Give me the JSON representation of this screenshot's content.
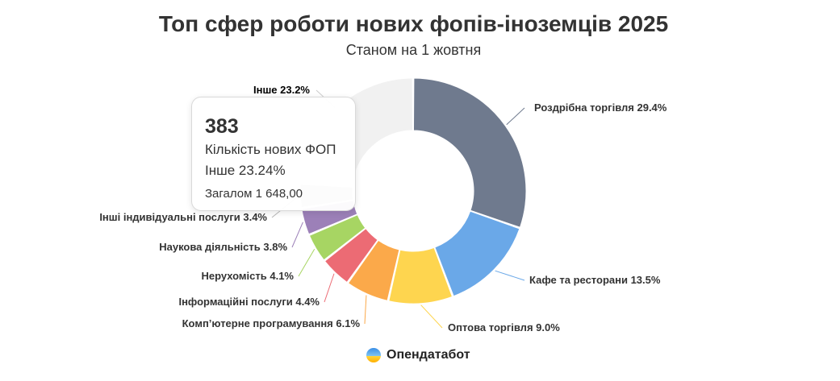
{
  "header": {
    "title": "Топ сфер роботи нових фопів-іноземців 2025",
    "subtitle": "Станом на 1 жовтня"
  },
  "chart_data": {
    "type": "pie",
    "variant": "donut",
    "title": "Топ сфер роботи нових фопів-іноземців 2025",
    "subtitle": "Станом на 1 жовтня",
    "unit": "%",
    "slices": [
      {
        "name": "Роздрібна торгівля",
        "value": 29.4,
        "label": "Роздрібна торгівля 29.4%",
        "color": "#6f7a8e"
      },
      {
        "name": "Кафе та ресторани",
        "value": 13.5,
        "label": "Кафе та ресторани 13.5%",
        "color": "#6aa8e8"
      },
      {
        "name": "Оптова торгівля",
        "value": 9.0,
        "label": "Оптова торгівля 9.0%",
        "color": "#fed54f"
      },
      {
        "name": "Комп’ютерне програмування",
        "value": 6.1,
        "label": "Комп’ютерне програмування 6.1%",
        "color": "#fba94a"
      },
      {
        "name": "Інформаційні послуги",
        "value": 4.4,
        "label": "Інформаційні послуги 4.4%",
        "color": "#ec6b74"
      },
      {
        "name": "Нерухомість",
        "value": 4.1,
        "label": "Нерухомість 4.1%",
        "color": "#a7d563"
      },
      {
        "name": "Наукова діяльність",
        "value": 3.8,
        "label": "Наукова діяльність 3.8%",
        "color": "#9c80b8"
      },
      {
        "name": "Інші індивідуальні послуги",
        "value": 3.4,
        "label": "Інші індивідуальні послуги 3.4%",
        "color": "#b8b8b8"
      },
      {
        "name": "Інше",
        "value": 23.2,
        "label": "Інше 23.2%",
        "color": "#f1f1f1"
      }
    ]
  },
  "tooltip": {
    "value": "383",
    "metric": "Кількість нових ФОП",
    "category": "Інше 23.24%",
    "total": "Загалом 1 648,00"
  },
  "brand": {
    "name": "Опендатабот"
  }
}
